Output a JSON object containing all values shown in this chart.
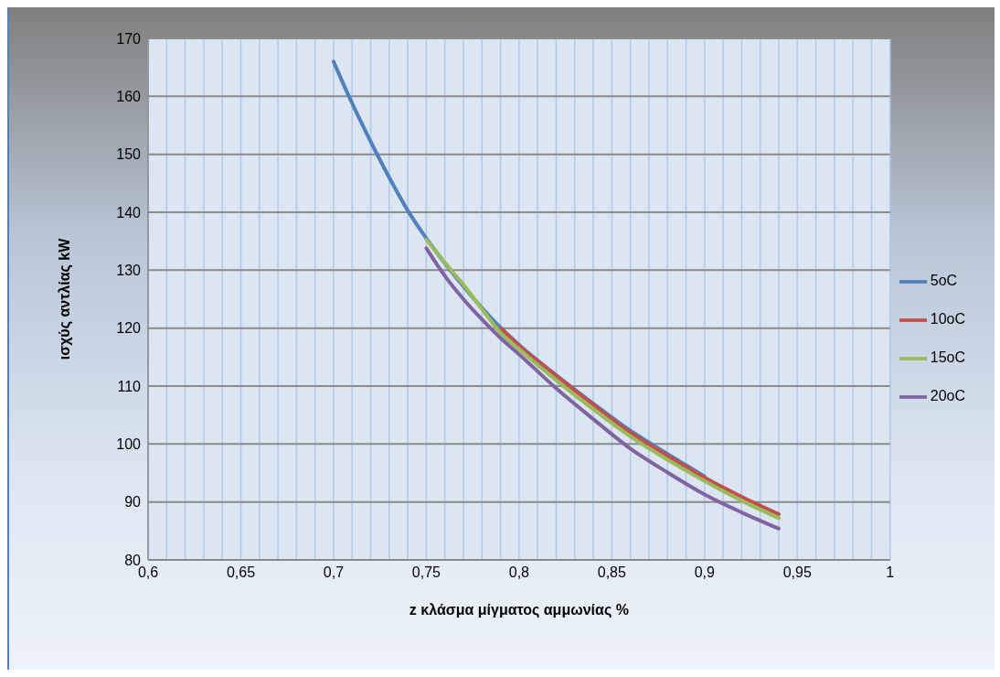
{
  "chart_data": {
    "type": "line",
    "xlabel": "z κλάσμα μίγματος αμμωνίας %",
    "ylabel": "ισχύς αντλίας kW",
    "xlim": [
      0.6,
      1
    ],
    "ylim": [
      80,
      170
    ],
    "xticks": [
      {
        "value": 0.6,
        "label": "0,6"
      },
      {
        "value": 0.61,
        "label": null
      },
      {
        "value": 0.62,
        "label": null
      },
      {
        "value": 0.63,
        "label": null
      },
      {
        "value": 0.64,
        "label": null
      },
      {
        "value": 0.65,
        "label": "0,65"
      },
      {
        "value": 0.66,
        "label": null
      },
      {
        "value": 0.67,
        "label": null
      },
      {
        "value": 0.68,
        "label": null
      },
      {
        "value": 0.69,
        "label": null
      },
      {
        "value": 0.7,
        "label": "0,7"
      },
      {
        "value": 0.71,
        "label": null
      },
      {
        "value": 0.72,
        "label": null
      },
      {
        "value": 0.73,
        "label": null
      },
      {
        "value": 0.74,
        "label": null
      },
      {
        "value": 0.75,
        "label": "0,75"
      },
      {
        "value": 0.76,
        "label": null
      },
      {
        "value": 0.77,
        "label": null
      },
      {
        "value": 0.78,
        "label": null
      },
      {
        "value": 0.79,
        "label": null
      },
      {
        "value": 0.8,
        "label": "0,8"
      },
      {
        "value": 0.81,
        "label": null
      },
      {
        "value": 0.82,
        "label": null
      },
      {
        "value": 0.83,
        "label": null
      },
      {
        "value": 0.84,
        "label": null
      },
      {
        "value": 0.85,
        "label": "0,85"
      },
      {
        "value": 0.86,
        "label": null
      },
      {
        "value": 0.87,
        "label": null
      },
      {
        "value": 0.88,
        "label": null
      },
      {
        "value": 0.89,
        "label": null
      },
      {
        "value": 0.9,
        "label": "0,9"
      },
      {
        "value": 0.91,
        "label": null
      },
      {
        "value": 0.92,
        "label": null
      },
      {
        "value": 0.93,
        "label": null
      },
      {
        "value": 0.94,
        "label": null
      },
      {
        "value": 0.95,
        "label": "0,95"
      },
      {
        "value": 0.96,
        "label": null
      },
      {
        "value": 0.97,
        "label": null
      },
      {
        "value": 0.98,
        "label": null
      },
      {
        "value": 0.99,
        "label": null
      },
      {
        "value": 1,
        "label": "1"
      }
    ],
    "yticks": [
      80,
      90,
      100,
      110,
      120,
      130,
      140,
      150,
      160,
      170
    ],
    "grid": true,
    "legend": "right",
    "marker": "none",
    "line_style": "solid",
    "series": [
      {
        "name": "5oC",
        "color": "#4f81bd",
        "x": [
          0.7,
          0.71,
          0.72,
          0.73,
          0.74,
          0.75,
          0.76,
          0.77,
          0.78,
          0.79,
          0.8,
          0.82,
          0.84,
          0.86,
          0.88,
          0.9
        ],
        "values": [
          166,
          158.8,
          152.2,
          146,
          140.3,
          135.5,
          131.2,
          127.2,
          123.5,
          120.1,
          117.1,
          111.9,
          107,
          102.3,
          98.3,
          94.4
        ]
      },
      {
        "name": "10oC",
        "color": "#c0504d",
        "x": [
          0.79,
          0.8,
          0.82,
          0.84,
          0.86,
          0.88,
          0.9,
          0.92,
          0.94
        ],
        "values": [
          120,
          117,
          111.8,
          106.8,
          102,
          98,
          94.2,
          90.9,
          87.9
        ]
      },
      {
        "name": "15oC",
        "color": "#9bbb59",
        "x": [
          0.75,
          0.76,
          0.77,
          0.78,
          0.79,
          0.8,
          0.82,
          0.84,
          0.86,
          0.88,
          0.9,
          0.92,
          0.94
        ],
        "values": [
          135.3,
          131.3,
          127.5,
          123.3,
          119.2,
          116.4,
          111,
          106,
          101.3,
          97.3,
          93.6,
          90.2,
          87.2
        ]
      },
      {
        "name": "20oC",
        "color": "#8064a2",
        "x": [
          0.75,
          0.76,
          0.77,
          0.78,
          0.79,
          0.8,
          0.82,
          0.84,
          0.86,
          0.88,
          0.9,
          0.92,
          0.94
        ],
        "values": [
          133.8,
          129,
          125,
          121.5,
          118.3,
          115.5,
          109.6,
          104.3,
          99.2,
          95.1,
          91.3,
          88.2,
          85.4
        ]
      }
    ]
  }
}
